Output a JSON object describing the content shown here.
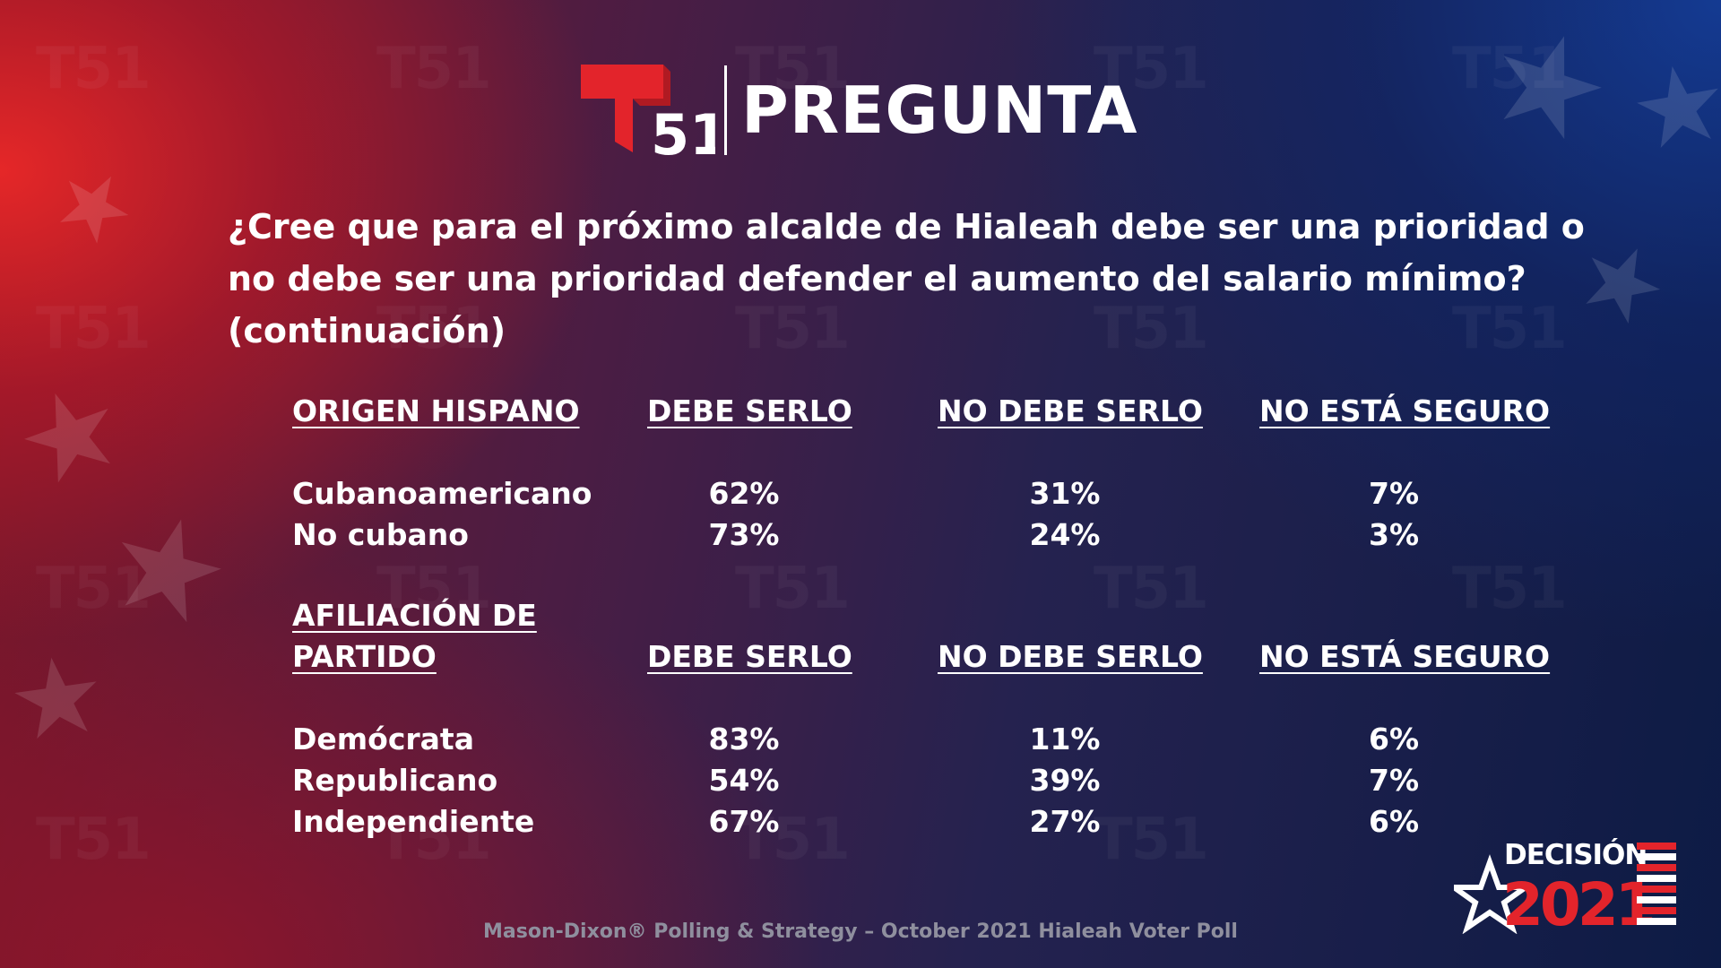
{
  "header": {
    "logo_number": "51",
    "title": "PREGUNTA"
  },
  "question": {
    "line1": "¿Cree que para el próximo alcalde de Hialeah debe ser una prioridad o",
    "line2": "no debe ser una prioridad defender el aumento del salario mínimo?",
    "line3": "(continuación)"
  },
  "chart_data": {
    "type": "table",
    "sections": [
      {
        "group_header": "ORIGEN HISPANO",
        "columns": [
          "DEBE SERLO",
          "NO DEBE SERLO",
          "NO ESTÁ SEGURO"
        ],
        "rows": [
          {
            "label": "Cubanoamericano",
            "values": [
              "62%",
              "31%",
              "7%"
            ]
          },
          {
            "label": "No cubano",
            "values": [
              "73%",
              "24%",
              "3%"
            ]
          }
        ]
      },
      {
        "group_header_line1": "AFILIACIÓN DE",
        "group_header_line2": "PARTIDO",
        "columns": [
          "DEBE SERLO",
          "NO DEBE SERLO",
          "NO ESTÁ SEGURO"
        ],
        "rows": [
          {
            "label": "Demócrata",
            "values": [
              "83%",
              "11%",
              "6%"
            ]
          },
          {
            "label": "Republicano",
            "values": [
              "54%",
              "39%",
              "7%"
            ]
          },
          {
            "label": "Independiente",
            "values": [
              "67%",
              "27%",
              "6%"
            ]
          }
        ]
      }
    ]
  },
  "footer": {
    "source": "Mason-Dixon® Polling & Strategy – October 2021 Hialeah Voter Poll",
    "decision_word": "DECISIÓN",
    "decision_year": "2021"
  },
  "colors": {
    "brand_red": "#e3242b",
    "text": "#ffffff",
    "source_text": "#8f8f9e"
  },
  "icons": [
    "telemundo-51-logo-icon",
    "decision-2021-logo-icon",
    "star-icon"
  ]
}
